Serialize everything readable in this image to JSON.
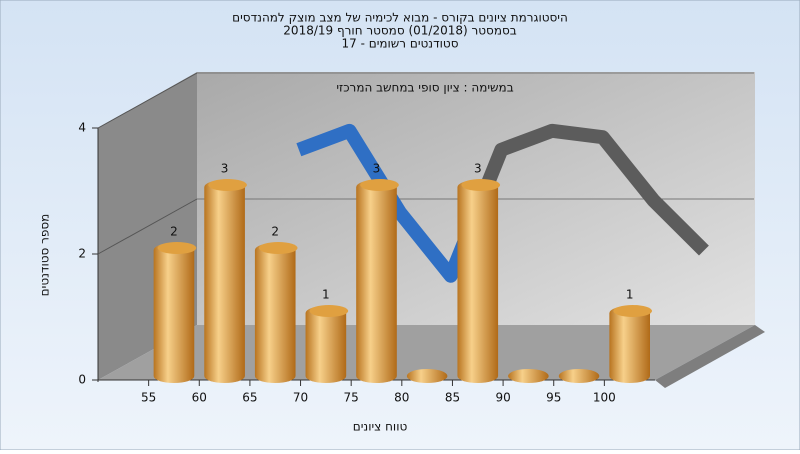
{
  "chart_data": {
    "type": "bar",
    "title": "היסטוגרמת ציונים בקורס - מבוא לכימיה של מצב מוצק למהנדסים",
    "subtitle": "בסמסטר  (01/2018)  סמסטר חורף 2018/19",
    "subtitle2": "סטודנטים רשומים - 17",
    "annotation": "במשימה : ציון סופי במחשב המרכזי",
    "x_label": "טווח ציונים",
    "y_label": "מספר סטודנטים",
    "categories": [
      "55",
      "60",
      "65",
      "70",
      "75",
      "80",
      "85",
      "90",
      "95",
      "100"
    ],
    "values": [
      2,
      3,
      2,
      1,
      3,
      0,
      3,
      0,
      0,
      1
    ],
    "color": "#e0a040",
    "line": {
      "colors": [
        "#2f6fc4",
        "#5c5c5c"
      ],
      "values": [
        null,
        3.0,
        3.3,
        2.0,
        1.0,
        3.0,
        3.3,
        3.2,
        2.2,
        1.4
      ]
    },
    "ylim": [
      0,
      4
    ],
    "yticks": [
      0,
      2,
      4
    ],
    "grid": true
  }
}
